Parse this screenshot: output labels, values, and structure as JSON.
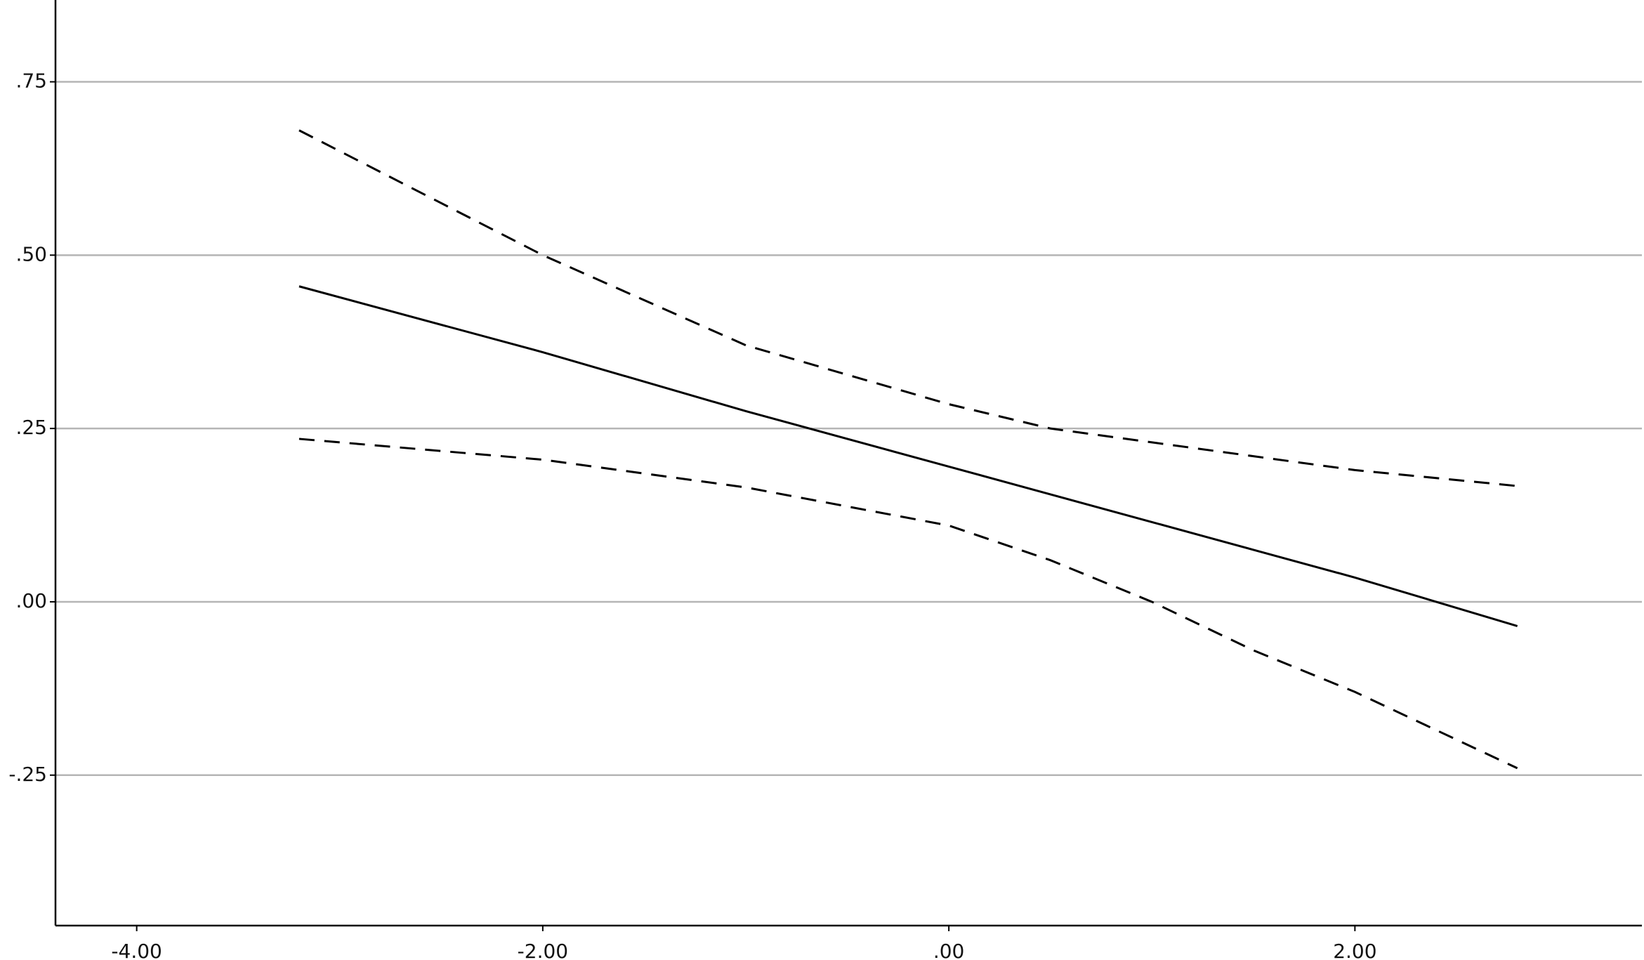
{
  "chart_data": {
    "type": "line",
    "x": [
      -3.2,
      -2,
      -1,
      0,
      0.5,
      1,
      1.5,
      2,
      2.8
    ],
    "series": [
      {
        "color": "#000000",
        "dashed": false,
        "values": [
          0.455,
          0.36,
          0.275,
          0.195,
          0.155,
          0.115,
          0.075,
          0.035,
          -0.035
        ]
      },
      {
        "color": "#000000",
        "dashed": true,
        "values": [
          0.68,
          0.5,
          0.37,
          0.285,
          0.25,
          0.23,
          0.21,
          0.19,
          0.167
        ]
      },
      {
        "color": "#000000",
        "dashed": true,
        "values": [
          0.235,
          0.205,
          0.165,
          0.11,
          0.06,
          0.0,
          -0.07,
          -0.13,
          -0.24
        ]
      }
    ],
    "xlim": [
      -4.4,
      3.32
    ],
    "ylim": [
      -0.467,
      0.868
    ],
    "xticks": [
      {
        "value": -4,
        "label": "-4.00"
      },
      {
        "value": -2,
        "label": "-2.00"
      },
      {
        "value": 0,
        "label": ".00"
      },
      {
        "value": 2,
        "label": "2.00"
      }
    ],
    "yticks": [
      {
        "value": -0.25,
        "label": "-.25"
      },
      {
        "value": 0,
        "label": ".00"
      },
      {
        "value": 0.25,
        "label": ".25"
      },
      {
        "value": 0.5,
        "label": ".50"
      },
      {
        "value": 0.75,
        "label": ".75"
      }
    ],
    "grid": true
  }
}
